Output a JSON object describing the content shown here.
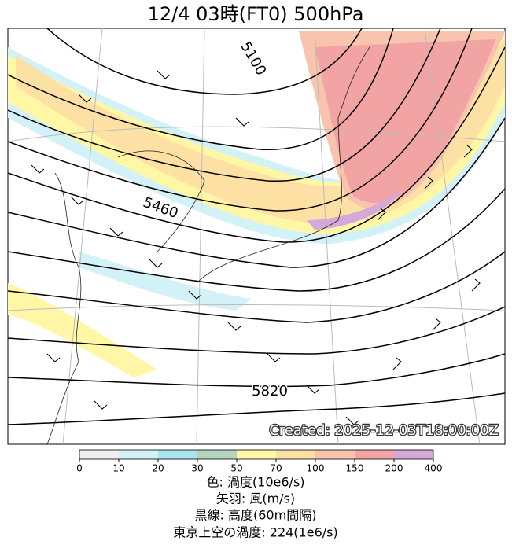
{
  "title": "12/4  03時(FT0)     500hPa",
  "contour_labels": [
    "5100",
    "5460",
    "5820"
  ],
  "created": "Created: 2025-12-03T18:00:00Z",
  "colorbar": {
    "ticks": [
      0,
      10,
      20,
      30,
      50,
      70,
      100,
      150,
      200,
      400
    ],
    "colors": [
      "#efefef",
      "#d2f2f8",
      "#a8e4f0",
      "#b4d4c0",
      "#fff7a6",
      "#fde0a4",
      "#f8c4ae",
      "#f2a4a4",
      "#d4a8d8"
    ]
  },
  "legend": [
    "色: 渦度(10e6/s)",
    "矢羽: 風(m/s)",
    "黒線: 高度(60m間隔)",
    "東京上空の渦度: 224(1e6/s)"
  ]
}
